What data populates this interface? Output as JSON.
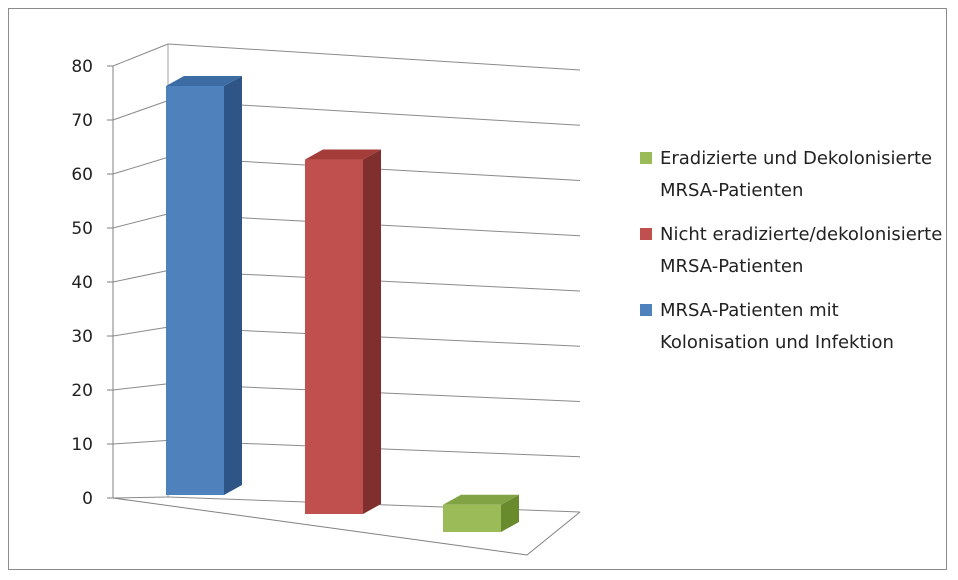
{
  "chart_data": {
    "type": "bar",
    "title": "",
    "xlabel": "",
    "ylabel": "",
    "ylim": [
      0,
      80
    ],
    "yticks": [
      0,
      10,
      20,
      30,
      40,
      50,
      60,
      70,
      80
    ],
    "grid": true,
    "legend_position": "right",
    "three_d": true,
    "series": [
      {
        "name": "MRSA-Patienten mit Kolonisation und Infektion",
        "value": 75,
        "color": "#4f81bd",
        "side_color": "#2f5586",
        "top_color": "#3c6ca3"
      },
      {
        "name": "Nicht eradizierte/dekolonisierte MRSA-Patienten",
        "value": 65,
        "color": "#c0504d",
        "side_color": "#7f2f2d",
        "top_color": "#a43c39"
      },
      {
        "name": "Eradizierte und Dekolonisierte MRSA-Patienten",
        "value": 5,
        "color": "#9bbb59",
        "side_color": "#6a8a2e",
        "top_color": "#82a343"
      }
    ],
    "legend_order": [
      2,
      1,
      0
    ]
  }
}
